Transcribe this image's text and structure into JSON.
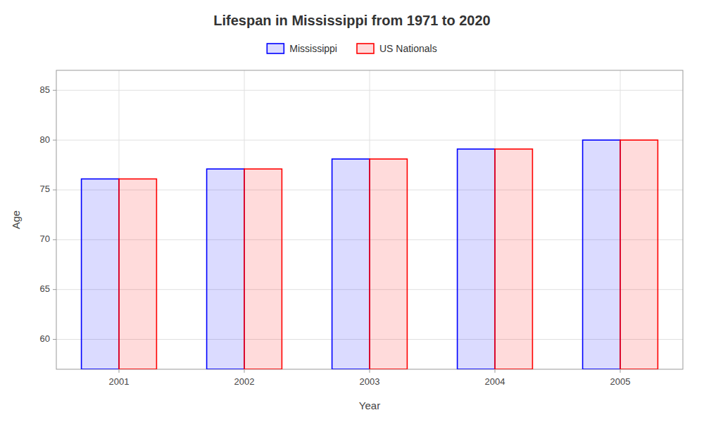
{
  "chart_data": {
    "type": "bar",
    "title": "Lifespan in Mississippi from 1971 to 2020",
    "xlabel": "Year",
    "ylabel": "Age",
    "categories": [
      "2001",
      "2002",
      "2003",
      "2004",
      "2005"
    ],
    "series": [
      {
        "name": "Mississippi",
        "color": "#0000ff",
        "values": [
          76.1,
          77.1,
          78.1,
          79.1,
          80.0
        ]
      },
      {
        "name": "US Nationals",
        "color": "#ff0000",
        "values": [
          76.1,
          77.1,
          78.1,
          79.1,
          80.0
        ]
      }
    ],
    "ylim": [
      57,
      87
    ],
    "yticks": [
      60,
      65,
      70,
      75,
      80,
      85
    ],
    "grid": true,
    "legend": "top"
  }
}
